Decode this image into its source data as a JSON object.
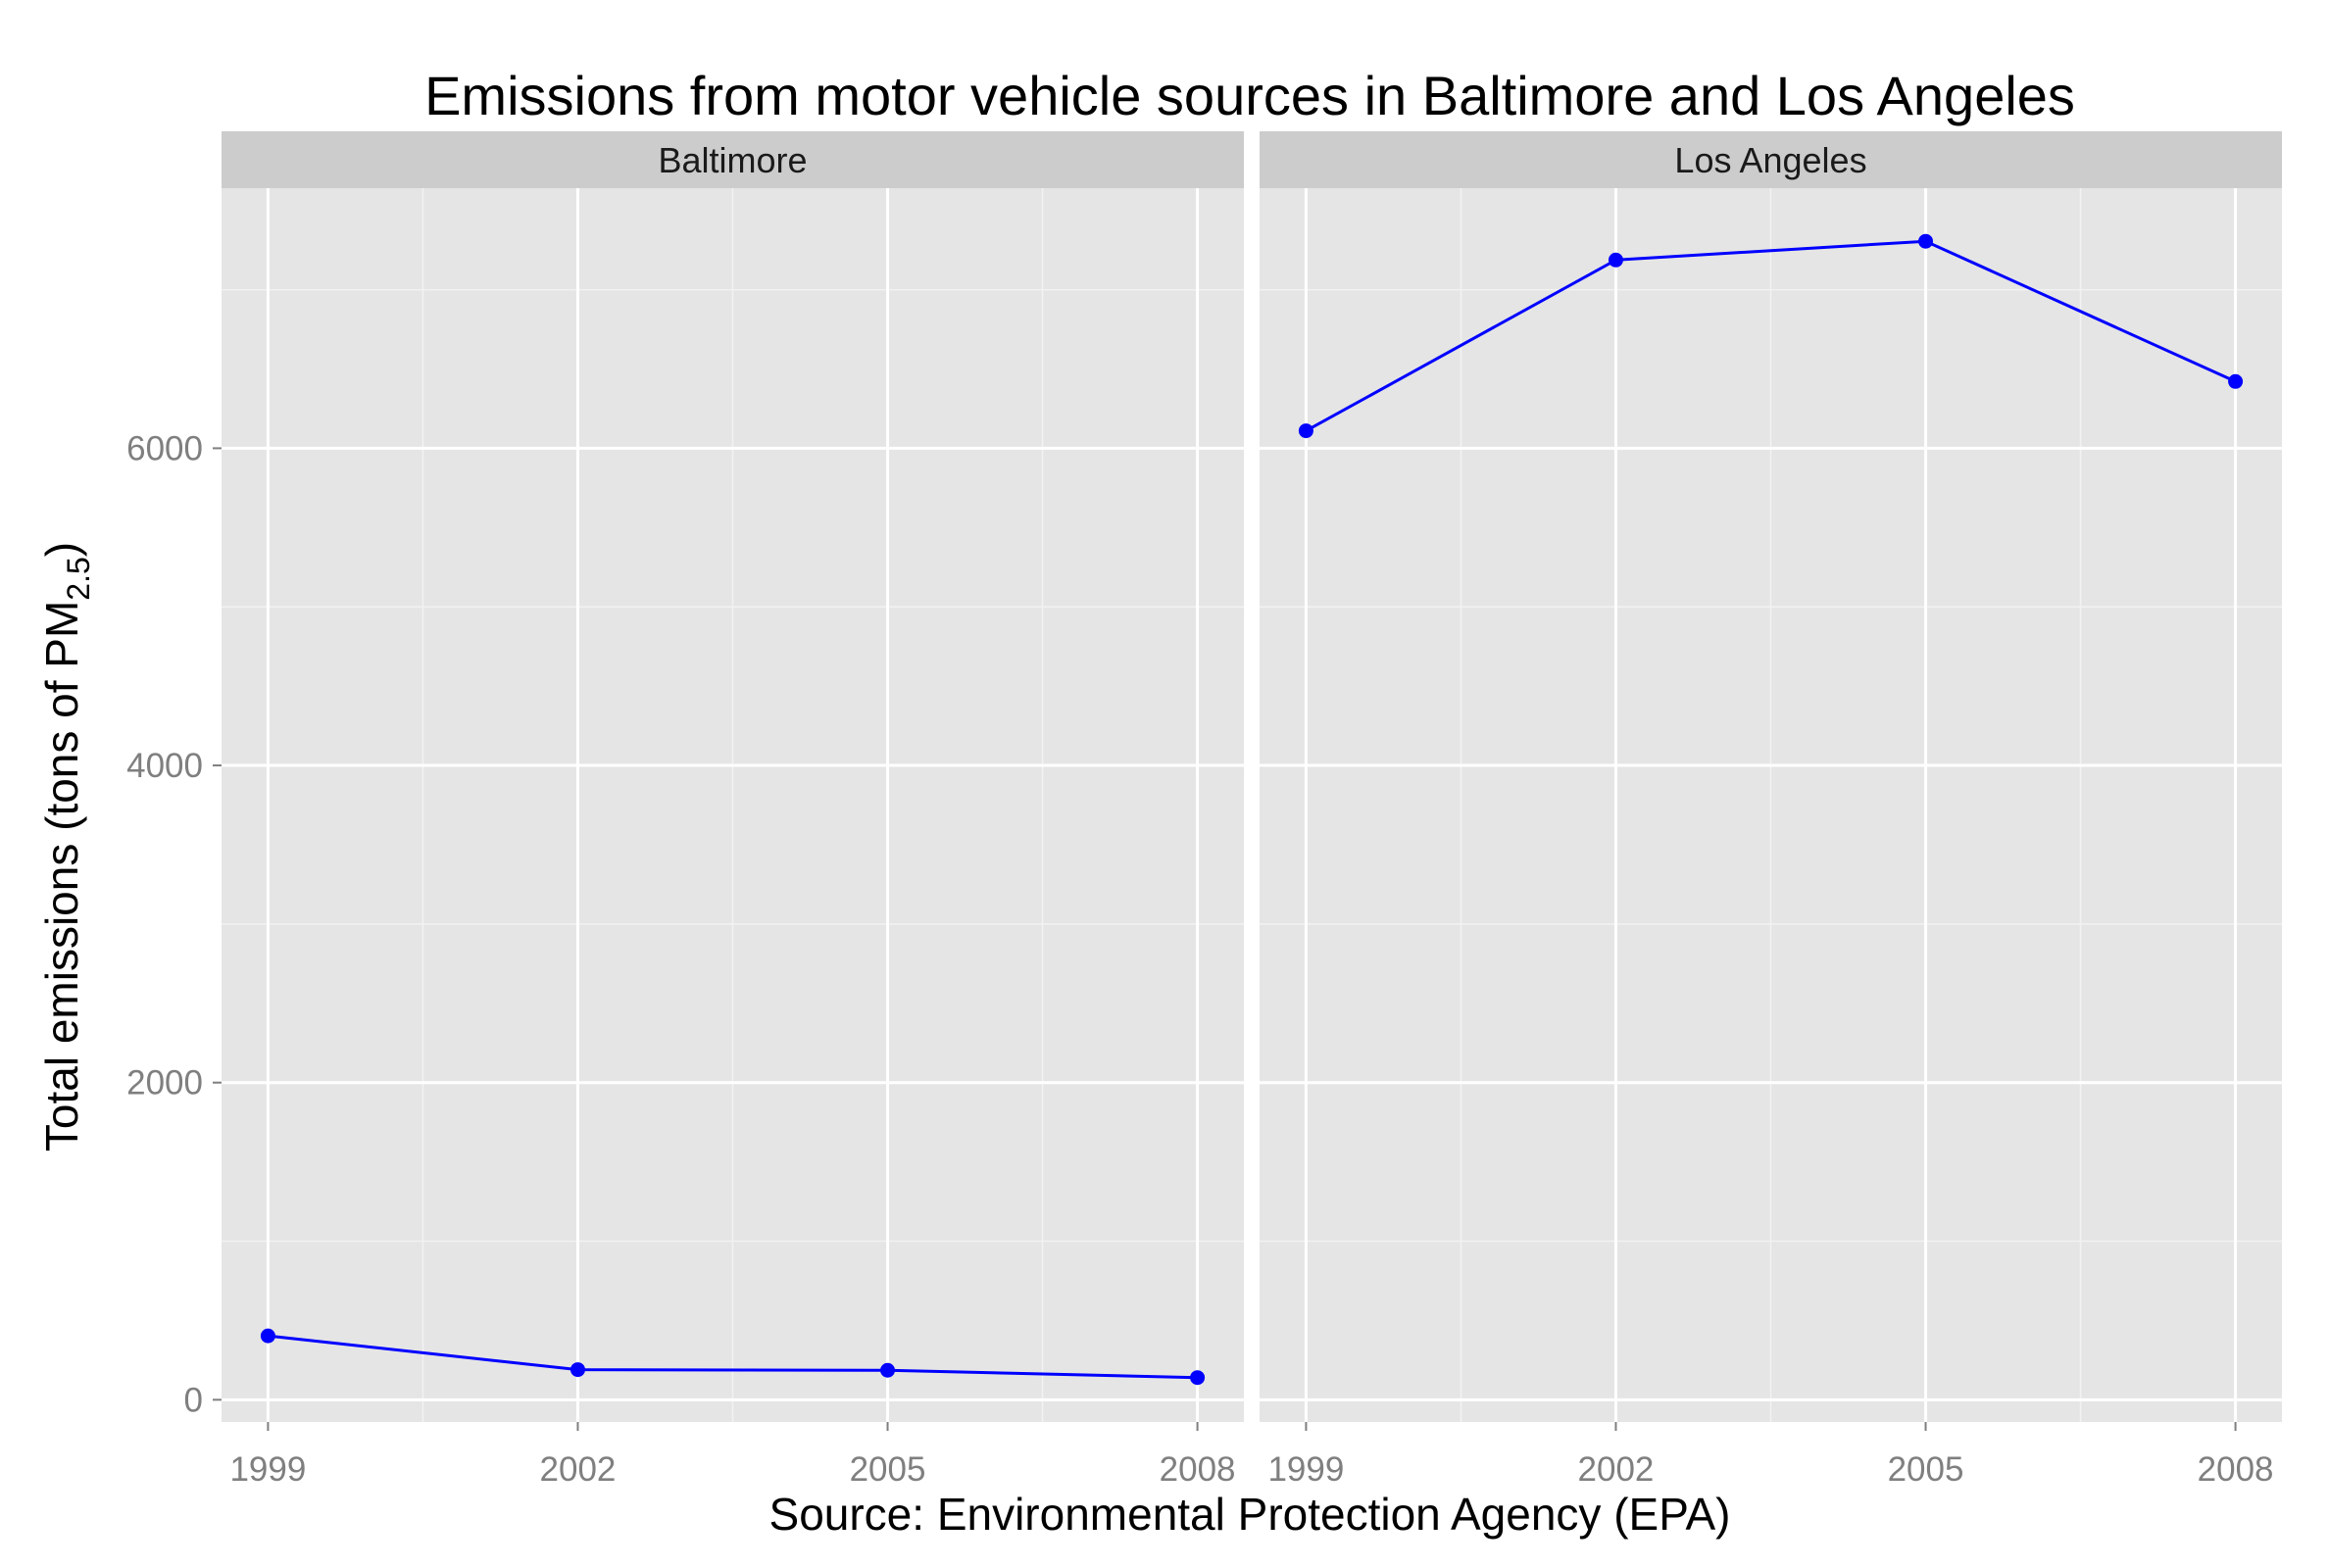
{
  "chart_data": {
    "type": "line",
    "title": "Emissions from motor vehicle sources in Baltimore and Los Angeles",
    "xlabel": "Source: Environmental Protection Agency (EPA)",
    "ylabel": {
      "main": "Total emissions (tons of PM",
      "subscript": "2.5",
      "close": ")"
    },
    "x": [
      1999,
      2002,
      2005,
      2008
    ],
    "xticks": [
      "1999",
      "2002",
      "2005",
      "2008"
    ],
    "xlim": [
      1998.55,
      2008.45
    ],
    "ylim": [
      -140,
      7640
    ],
    "yticks": [
      0,
      2000,
      4000,
      6000
    ],
    "yticks_labels": [
      "0",
      "2000",
      "4000",
      "6000"
    ],
    "grid": true,
    "series_color": "#0000ff",
    "panel_bg": "#e5e5e5",
    "strip_bg": "#cccccc",
    "panels": [
      {
        "name": "Baltimore",
        "values": [
          403,
          190,
          186,
          140
        ]
      },
      {
        "name": "Los Angeles",
        "values": [
          6110,
          7187,
          7305,
          6421
        ]
      }
    ]
  }
}
